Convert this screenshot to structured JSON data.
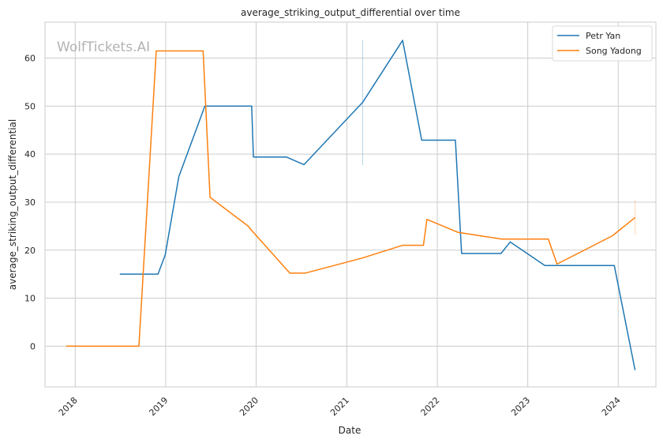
{
  "chart_data": {
    "type": "line",
    "title": "average_striking_output_differential over time",
    "xlabel": "Date",
    "ylabel": "average_striking_output_differential",
    "watermark": "WolfTickets.AI",
    "x_type": "date",
    "xlim": [
      "2017-09-01",
      "2024-06-01"
    ],
    "ylim": [
      -8.5,
      67.5
    ],
    "x_ticks": [
      "2018-01-01",
      "2019-01-01",
      "2020-01-01",
      "2021-01-01",
      "2022-01-01",
      "2023-01-01",
      "2024-01-01"
    ],
    "x_tick_labels": [
      "2018",
      "2019",
      "2020",
      "2021",
      "2022",
      "2023",
      "2024"
    ],
    "y_ticks": [
      0,
      10,
      20,
      30,
      40,
      50,
      60
    ],
    "y_tick_labels": [
      "0",
      "10",
      "20",
      "30",
      "40",
      "50",
      "60"
    ],
    "grid": true,
    "legend_position": "top-right",
    "series": [
      {
        "name": "Petr Yan",
        "color": "#1f77b4",
        "points": [
          [
            "2018-06-30",
            15.0
          ],
          [
            "2018-12-01",
            15.0
          ],
          [
            "2018-12-30",
            19.0
          ],
          [
            "2019-02-23",
            35.3
          ],
          [
            "2019-06-08",
            50.0
          ],
          [
            "2019-12-14",
            50.0
          ],
          [
            "2019-12-21",
            39.4
          ],
          [
            "2020-05-02",
            39.4
          ],
          [
            "2020-07-12",
            37.8
          ],
          [
            "2021-03-06",
            50.8
          ],
          [
            "2021-08-14",
            63.7
          ],
          [
            "2021-10-30",
            42.9
          ],
          [
            "2022-03-15",
            42.9
          ],
          [
            "2022-04-09",
            19.3
          ],
          [
            "2022-09-15",
            19.3
          ],
          [
            "2022-10-22",
            21.7
          ],
          [
            "2023-03-11",
            16.8
          ],
          [
            "2023-12-16",
            16.8
          ],
          [
            "2024-03-09",
            -5.0
          ]
        ],
        "error_bar": {
          "x": "2021-03-06",
          "low": 37.7,
          "high": 63.8
        }
      },
      {
        "name": "Song Yadong",
        "color": "#ff7f0e",
        "points": [
          [
            "2017-11-25",
            0.0
          ],
          [
            "2018-09-15",
            0.0
          ],
          [
            "2018-11-24",
            61.5
          ],
          [
            "2019-06-01",
            61.5
          ],
          [
            "2019-06-29",
            31.0
          ],
          [
            "2019-11-30",
            25.0
          ],
          [
            "2019-12-07",
            24.5
          ],
          [
            "2020-05-16",
            15.2
          ],
          [
            "2020-07-16",
            15.2
          ],
          [
            "2021-03-01",
            18.3
          ],
          [
            "2021-08-14",
            21.0
          ],
          [
            "2021-11-06",
            21.0
          ],
          [
            "2021-11-20",
            26.4
          ],
          [
            "2022-03-26",
            23.7
          ],
          [
            "2022-09-17",
            22.3
          ],
          [
            "2023-03-25",
            22.3
          ],
          [
            "2023-04-29",
            17.1
          ],
          [
            "2023-12-09",
            23.0
          ],
          [
            "2024-03-09",
            26.8
          ]
        ],
        "error_bar": {
          "x": "2024-03-09",
          "low": 23.2,
          "high": 30.4
        }
      }
    ]
  }
}
